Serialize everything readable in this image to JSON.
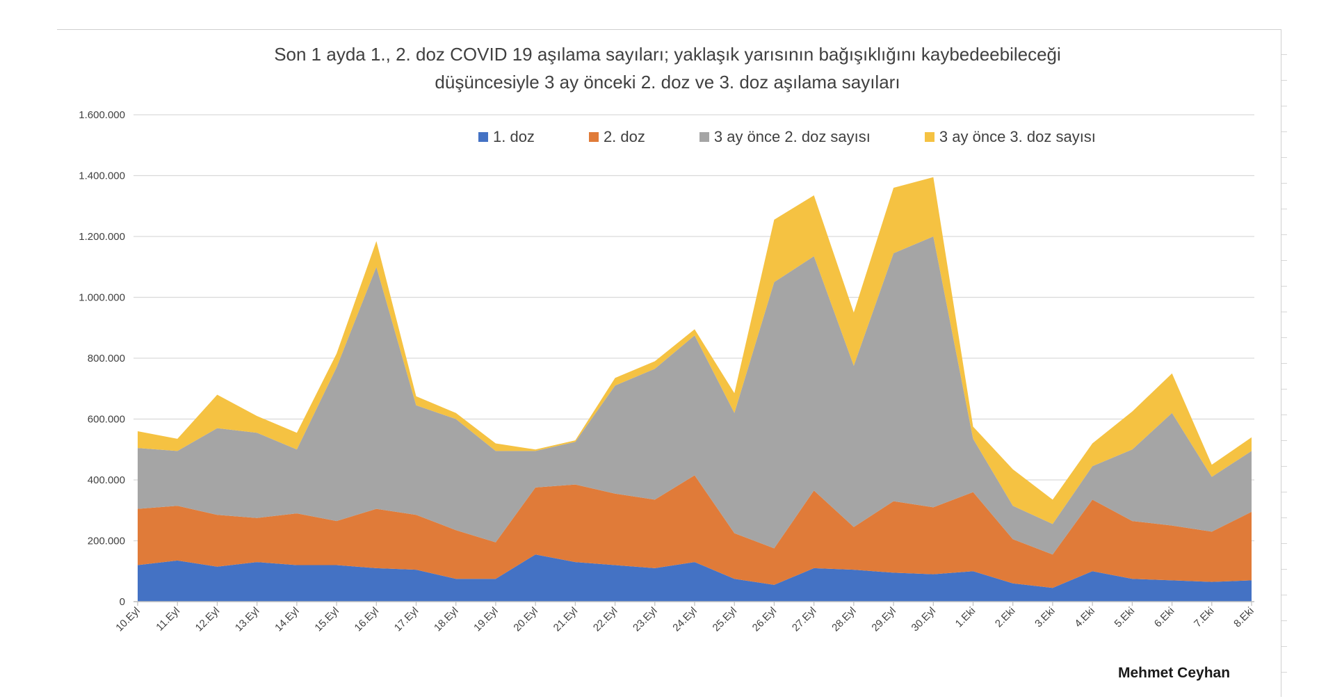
{
  "title_lines": [
    "Son 1 ayda 1., 2. doz COVID 19 aşılama sayıları; yaklaşık yarısının bağışıklığını kaybedeebileceği",
    "düşüncesiyle 3 ay önceki 2. doz ve 3. doz aşılama sayıları"
  ],
  "author": "Mehmet Ceyhan",
  "chart_data": {
    "type": "area",
    "stacked": true,
    "title": "Son 1 ayda 1., 2. doz COVID 19 aşılama sayıları; yaklaşık yarısının bağışıklığını kaybedeebileceği düşüncesiyle 3 ay önceki 2. doz ve 3. doz aşılama sayıları",
    "xlabel": "",
    "ylabel": "",
    "ylim": [
      0,
      1600000
    ],
    "yticks": [
      0,
      200000,
      400000,
      600000,
      800000,
      1000000,
      1200000,
      1400000,
      1600000
    ],
    "ytick_labels": [
      "0",
      "200.000",
      "400.000",
      "600.000",
      "800.000",
      "1.000.000",
      "1.200.000",
      "1.400.000",
      "1.600.000"
    ],
    "grid": true,
    "legend_position": "top",
    "categories": [
      "10.Eyl",
      "11.Eyl",
      "12.Eyl",
      "13.Eyl",
      "14.Eyl",
      "15.Eyl",
      "16.Eyl",
      "17.Eyl",
      "18.Eyl",
      "19.Eyl",
      "20.Eyl",
      "21.Eyl",
      "22.Eyl",
      "23.Eyl",
      "24.Eyl",
      "25.Eyl",
      "26.Eyl",
      "27.Eyl",
      "28.Eyl",
      "29.Eyl",
      "30.Eyl",
      "1.Eki",
      "2.Eki",
      "3.Eki",
      "4.Eki",
      "5.Eki",
      "6.Eki",
      "7.Eki",
      "8.Eki"
    ],
    "series": [
      {
        "name": "1. doz",
        "color": "#4472c4",
        "values": [
          120000,
          135000,
          115000,
          130000,
          120000,
          120000,
          110000,
          105000,
          75000,
          75000,
          155000,
          130000,
          120000,
          110000,
          130000,
          75000,
          55000,
          110000,
          105000,
          95000,
          90000,
          100000,
          60000,
          45000,
          100000,
          75000,
          70000,
          65000,
          70000
        ]
      },
      {
        "name": "2. doz",
        "color": "#e07b39",
        "values": [
          185000,
          180000,
          170000,
          145000,
          170000,
          145000,
          195000,
          180000,
          160000,
          120000,
          220000,
          255000,
          235000,
          225000,
          285000,
          150000,
          120000,
          255000,
          140000,
          235000,
          220000,
          260000,
          145000,
          110000,
          235000,
          190000,
          180000,
          165000,
          225000
        ]
      },
      {
        "name": "3 ay önce 2. doz sayısı",
        "color": "#a5a5a5",
        "values": [
          200000,
          180000,
          285000,
          280000,
          210000,
          505000,
          795000,
          360000,
          365000,
          300000,
          120000,
          140000,
          355000,
          430000,
          460000,
          395000,
          875000,
          770000,
          530000,
          815000,
          890000,
          175000,
          110000,
          100000,
          110000,
          235000,
          370000,
          180000,
          200000
        ]
      },
      {
        "name": "3 ay önce 3. doz sayısı",
        "color": "#f5c242",
        "values": [
          55000,
          40000,
          110000,
          55000,
          55000,
          45000,
          85000,
          30000,
          20000,
          25000,
          5000,
          5000,
          25000,
          25000,
          20000,
          65000,
          205000,
          200000,
          175000,
          215000,
          195000,
          40000,
          120000,
          80000,
          75000,
          125000,
          130000,
          40000,
          45000
        ]
      }
    ]
  }
}
